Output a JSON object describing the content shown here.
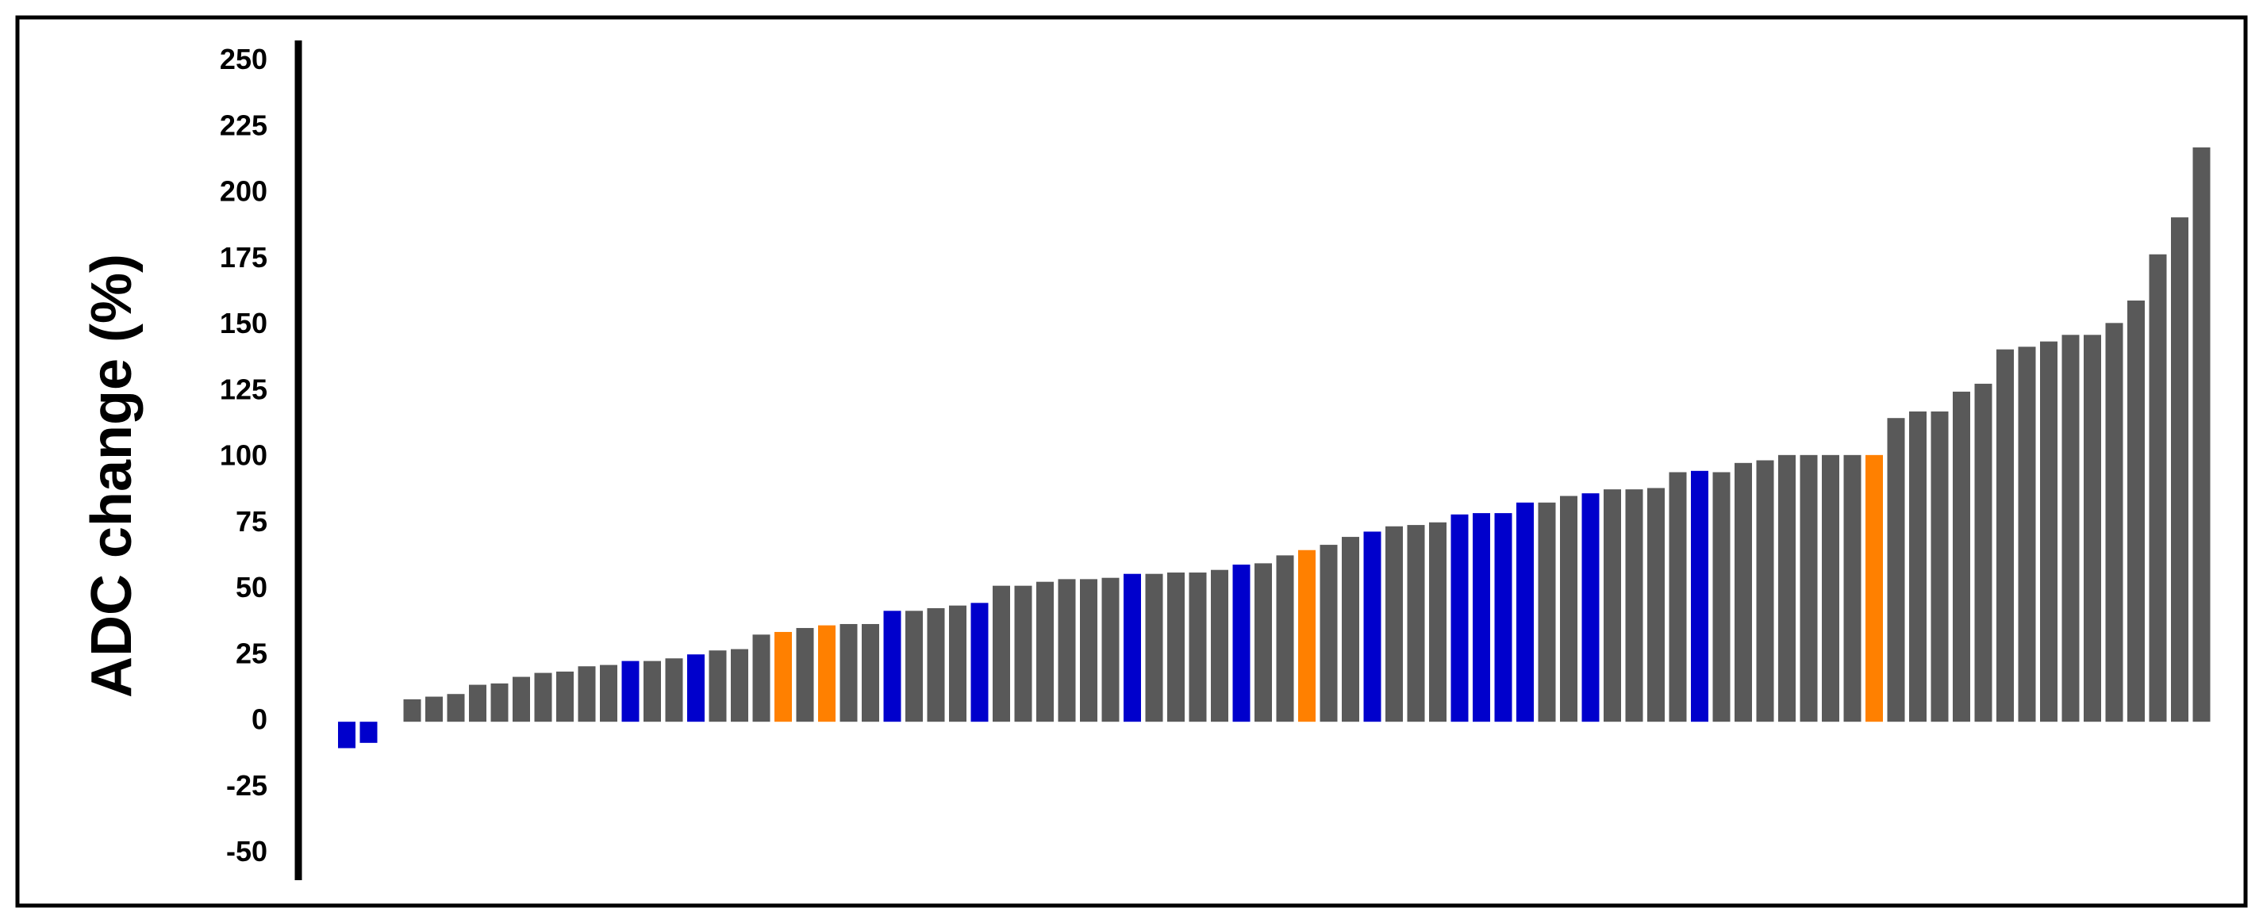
{
  "chart_data": {
    "type": "bar",
    "y_label": "ADC change (%)",
    "ylim": [
      -60,
      258
    ],
    "yticks": [
      -50,
      -25,
      0,
      25,
      50,
      75,
      100,
      125,
      150,
      175,
      200,
      225,
      250
    ],
    "values": [
      -10,
      -8,
      0,
      8.5,
      9.5,
      10.5,
      14,
      14.5,
      17,
      18.5,
      19,
      21,
      21.5,
      23,
      23,
      24,
      25.5,
      27,
      27.5,
      33,
      34,
      35.5,
      36.5,
      37,
      37,
      42,
      42,
      43,
      44,
      45,
      51.5,
      51.5,
      53,
      54,
      54,
      54.5,
      56,
      56,
      56.5,
      56.5,
      57.5,
      59.5,
      60,
      63,
      65,
      67,
      70,
      72,
      74,
      74.5,
      75.5,
      78.5,
      79,
      79,
      83,
      83,
      85.5,
      86.5,
      88,
      88,
      88.5,
      94.5,
      95,
      94.5,
      98,
      99,
      101,
      101,
      101,
      101,
      101,
      115,
      117.5,
      117.5,
      125,
      128,
      141,
      142,
      144,
      146.5,
      146.5,
      151,
      159.5,
      177,
      191,
      217.5
    ],
    "colors": [
      "#0000cc",
      "#0000cc",
      "#595959",
      "#595959",
      "#595959",
      "#595959",
      "#595959",
      "#595959",
      "#595959",
      "#595959",
      "#595959",
      "#595959",
      "#595959",
      "#0000cc",
      "#595959",
      "#595959",
      "#0000cc",
      "#595959",
      "#595959",
      "#595959",
      "#ff8000",
      "#595959",
      "#ff8000",
      "#595959",
      "#595959",
      "#0000cc",
      "#595959",
      "#595959",
      "#595959",
      "#0000cc",
      "#595959",
      "#595959",
      "#595959",
      "#595959",
      "#595959",
      "#595959",
      "#0000cc",
      "#595959",
      "#595959",
      "#595959",
      "#595959",
      "#0000cc",
      "#595959",
      "#595959",
      "#ff8000",
      "#595959",
      "#595959",
      "#0000cc",
      "#595959",
      "#595959",
      "#595959",
      "#0000cc",
      "#0000cc",
      "#0000cc",
      "#0000cc",
      "#595959",
      "#595959",
      "#0000cc",
      "#595959",
      "#595959",
      "#595959",
      "#595959",
      "#0000cc",
      "#595959",
      "#595959",
      "#595959",
      "#595959",
      "#595959",
      "#595959",
      "#595959",
      "#ff8000",
      "#595959",
      "#595959",
      "#595959",
      "#595959",
      "#595959",
      "#595959",
      "#595959",
      "#595959",
      "#595959",
      "#595959",
      "#595959",
      "#595959",
      "#595959",
      "#595959",
      "#595959"
    ]
  }
}
